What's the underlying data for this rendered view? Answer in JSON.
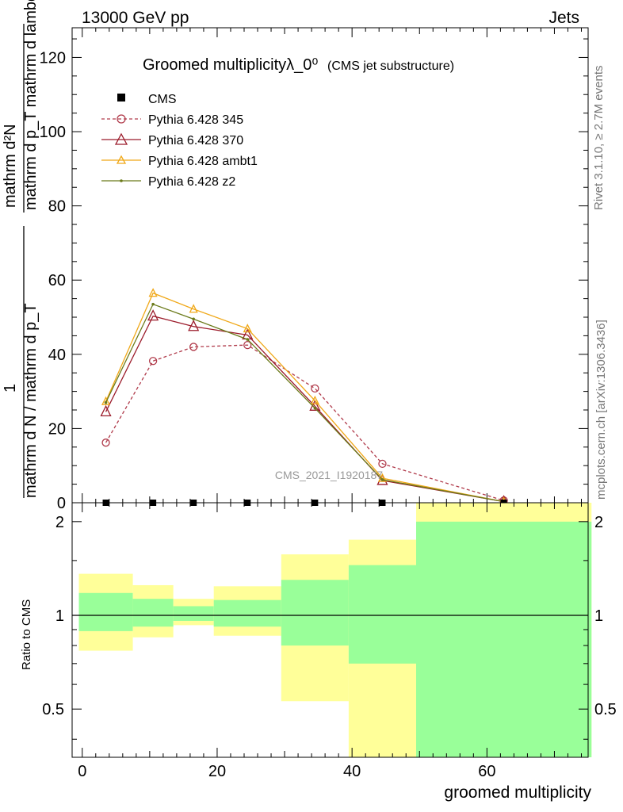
{
  "header": {
    "left": "13000 GeV pp",
    "right": "Jets"
  },
  "side_text": {
    "rivet": "Rivet 3.1.10, ≥ 2.7M events",
    "mcplots": "mcplots.cern.ch [arXiv:1306.3436]"
  },
  "watermark": "CMS_2021_I1920187",
  "colors": {
    "p345": "#b03a4a",
    "p370": "#9b1b2a",
    "ambt1": "#f0a818",
    "z2": "#6b7a1a",
    "band_yellow": "#ffff99",
    "band_green": "#99ff99"
  },
  "chart_data": [
    {
      "type": "line",
      "title": "Groomed multiplicityλ_0⁰",
      "title_note": "(CMS jet substructure)",
      "ylabel_lines": [
        "mathrm d²N",
        "mathrm d p_T mathrm d lambda",
        "mathrm d N / mathrm d p_T",
        "1",
        "mathrm d p_T mathrm d lambda"
      ],
      "xlim": [
        -1.5,
        75
      ],
      "ylim": [
        0,
        128
      ],
      "yticks": [
        0,
        20,
        40,
        60,
        80,
        100,
        120
      ],
      "legend": [
        "CMS",
        "Pythia 6.428 345",
        "Pythia 6.428 370",
        "Pythia 6.428 ambt1",
        "Pythia 6.428 z2"
      ],
      "legend_position": "top-left",
      "cms": {
        "name": "CMS",
        "x": [
          3.5,
          10.5,
          16.5,
          24.5,
          34.5,
          44.5,
          62.5
        ],
        "y": [
          0,
          0,
          0,
          0,
          0,
          0,
          0
        ]
      },
      "series": [
        {
          "name": "Pythia 6.428 345",
          "key": "p345",
          "style": "dashed",
          "marker": "circle",
          "x": [
            3.5,
            10.5,
            16.5,
            24.5,
            34.5,
            44.5,
            62.5
          ],
          "y": [
            16.2,
            38.2,
            42.0,
            42.5,
            30.8,
            10.5,
            0.6
          ]
        },
        {
          "name": "Pythia 6.428 370",
          "key": "p370",
          "style": "solid",
          "marker": "triangle",
          "x": [
            3.5,
            10.5,
            16.5,
            24.5,
            34.5,
            44.5,
            62.5
          ],
          "y": [
            24.5,
            50.3,
            47.5,
            45.2,
            26.0,
            6.0,
            0.3
          ]
        },
        {
          "name": "Pythia 6.428 ambt1",
          "key": "ambt1",
          "style": "solid",
          "marker": "triangle-small",
          "x": [
            3.5,
            10.5,
            16.5,
            24.5,
            34.5,
            44.5,
            62.5
          ],
          "y": [
            27.3,
            56.5,
            52.2,
            46.9,
            27.5,
            6.6,
            0.3
          ]
        },
        {
          "name": "Pythia 6.428 z2",
          "key": "z2",
          "style": "solid",
          "marker": "dot",
          "x": [
            3.5,
            10.5,
            16.5,
            24.5,
            34.5,
            44.5,
            62.5
          ],
          "y": [
            27.0,
            53.5,
            49.5,
            44.0,
            25.5,
            6.2,
            0.3
          ]
        }
      ]
    },
    {
      "type": "area",
      "ylabel": "Ratio to CMS",
      "xlabel": "groomed multiplicity",
      "xlim": [
        -1.5,
        75
      ],
      "ylim": [
        0.35,
        2.3
      ],
      "log_y": true,
      "xticks": [
        0,
        20,
        40,
        60
      ],
      "yticks": [
        0.5,
        1,
        2
      ],
      "reference": 1,
      "bins": [
        {
          "x0": -0.5,
          "x1": 7.5,
          "yellow": [
            0.77,
            1.36
          ],
          "green": [
            0.89,
            1.18
          ]
        },
        {
          "x0": 7.5,
          "x1": 13.5,
          "yellow": [
            0.85,
            1.25
          ],
          "green": [
            0.92,
            1.13
          ]
        },
        {
          "x0": 13.5,
          "x1": 19.5,
          "yellow": [
            0.93,
            1.13
          ],
          "green": [
            0.96,
            1.07
          ]
        },
        {
          "x0": 19.5,
          "x1": 29.5,
          "yellow": [
            0.86,
            1.24
          ],
          "green": [
            0.92,
            1.12
          ]
        },
        {
          "x0": 29.5,
          "x1": 39.5,
          "yellow": [
            0.53,
            1.57
          ],
          "green": [
            0.8,
            1.3
          ]
        },
        {
          "x0": 39.5,
          "x1": 49.5,
          "yellow": [
            0.35,
            1.75
          ],
          "green": [
            0.7,
            1.45
          ]
        },
        {
          "x0": 49.5,
          "x1": 75.5,
          "yellow": [
            0.35,
            2.3
          ],
          "green": [
            0.35,
            2.0
          ]
        }
      ]
    }
  ]
}
